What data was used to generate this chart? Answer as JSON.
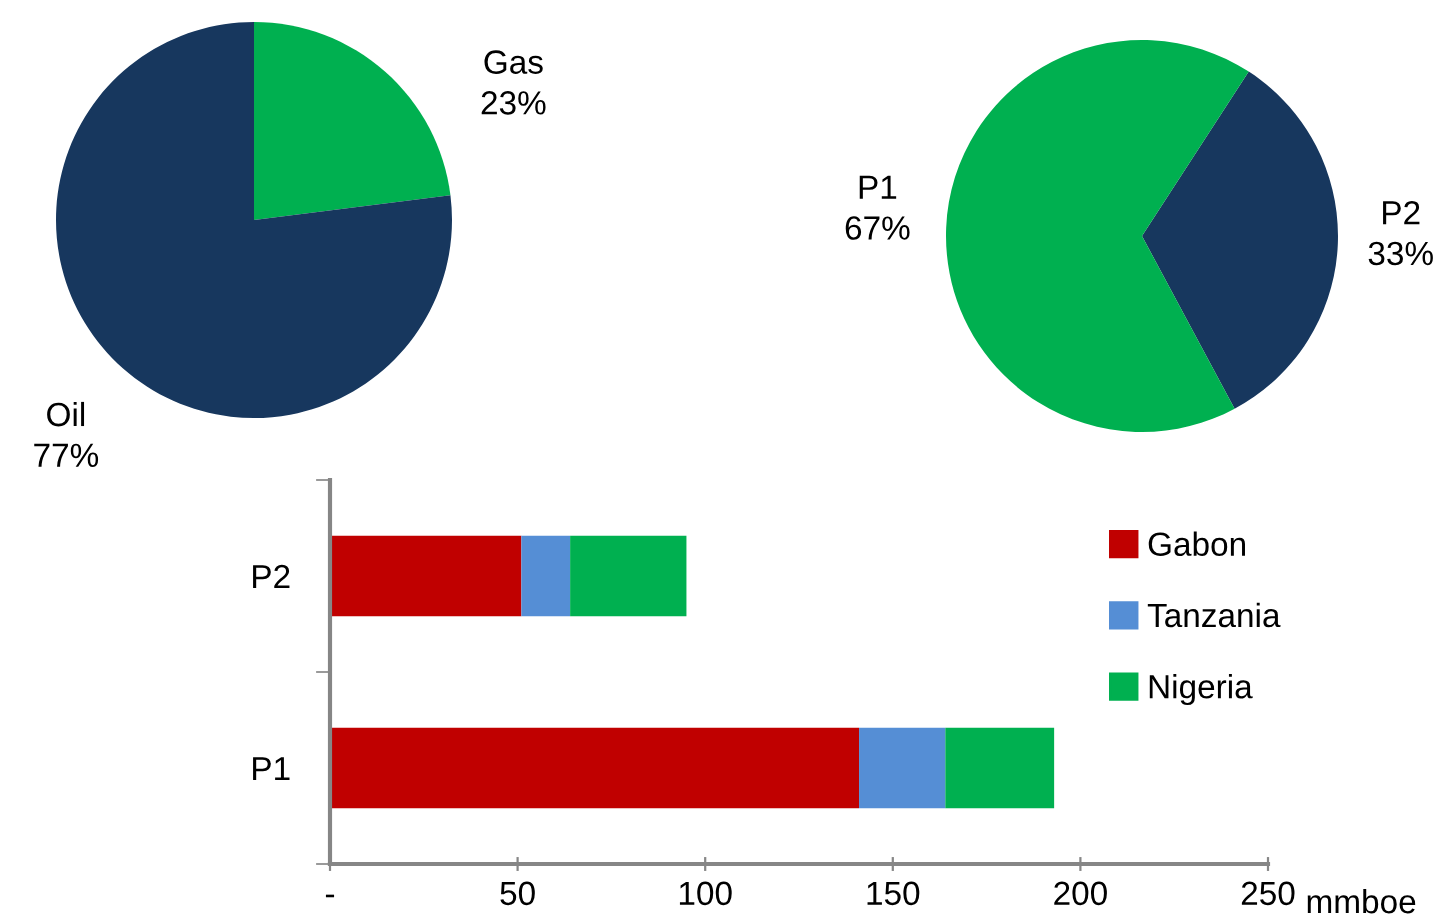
{
  "chart_data": [
    {
      "type": "pie",
      "categories": [
        "Gas",
        "Oil"
      ],
      "values": [
        23,
        77
      ],
      "colors": [
        "#00b050",
        "#17375e"
      ],
      "value_labels": [
        "23%",
        "77%"
      ]
    },
    {
      "type": "pie",
      "categories": [
        "P2",
        "P1"
      ],
      "values": [
        33,
        67
      ],
      "colors": [
        "#17375e",
        "#00b050"
      ],
      "value_labels": [
        "33%",
        "67%"
      ]
    },
    {
      "type": "bar",
      "orientation": "horizontal",
      "stacked": true,
      "categories": [
        "P2",
        "P1"
      ],
      "series": [
        {
          "name": "Gabon",
          "color": "#c00000",
          "values": [
            51,
            141
          ]
        },
        {
          "name": "Tanzania",
          "color": "#558ed5",
          "values": [
            13,
            23
          ]
        },
        {
          "name": "Nigeria",
          "color": "#00b050",
          "values": [
            31,
            29
          ]
        }
      ],
      "xlim": [
        0,
        250
      ],
      "xticks": [
        {
          "value": 0,
          "label": "-"
        },
        50,
        100,
        150,
        200,
        250
      ],
      "xlabel": "mmboe",
      "legend": "right",
      "grid": false
    }
  ]
}
